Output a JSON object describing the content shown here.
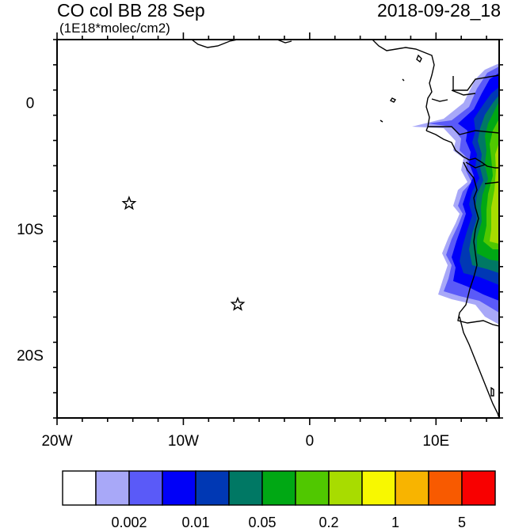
{
  "title_left": "CO col BB 28 Sep",
  "title_right": "2018-09-28_18",
  "units": "(1E18*molec/cm2)",
  "map": {
    "lon_range": [
      -20,
      15
    ],
    "lat_range": [
      -25,
      5
    ],
    "x_ticks": [
      {
        "value": -20,
        "label": "20W"
      },
      {
        "value": -10,
        "label": "10W"
      },
      {
        "value": 0,
        "label": "0"
      },
      {
        "value": 10,
        "label": "10E"
      }
    ],
    "y_ticks": [
      {
        "value": 0,
        "label": "0"
      },
      {
        "value": -10,
        "label": "10S"
      },
      {
        "value": -20,
        "label": "20S"
      }
    ],
    "markers": [
      {
        "name": "star",
        "lon": -14.3,
        "lat": -8.0
      },
      {
        "name": "star",
        "lon": -5.7,
        "lat": -16.0
      }
    ],
    "coastline_color": "#000000"
  },
  "colorbar": {
    "colors": [
      "#ffffff",
      "#a8a8f8",
      "#5a5af8",
      "#0000f8",
      "#0038b4",
      "#007864",
      "#00a814",
      "#50c800",
      "#a8dc00",
      "#f8f800",
      "#f8b400",
      "#f85a00",
      "#f80000"
    ],
    "labels": [
      {
        "after_index": 2,
        "text": "0.002"
      },
      {
        "after_index": 4,
        "text": "0.01"
      },
      {
        "after_index": 6,
        "text": "0.05"
      },
      {
        "after_index": 8,
        "text": "0.2"
      },
      {
        "after_index": 10,
        "text": "1"
      },
      {
        "after_index": 12,
        "text": "5"
      }
    ]
  }
}
